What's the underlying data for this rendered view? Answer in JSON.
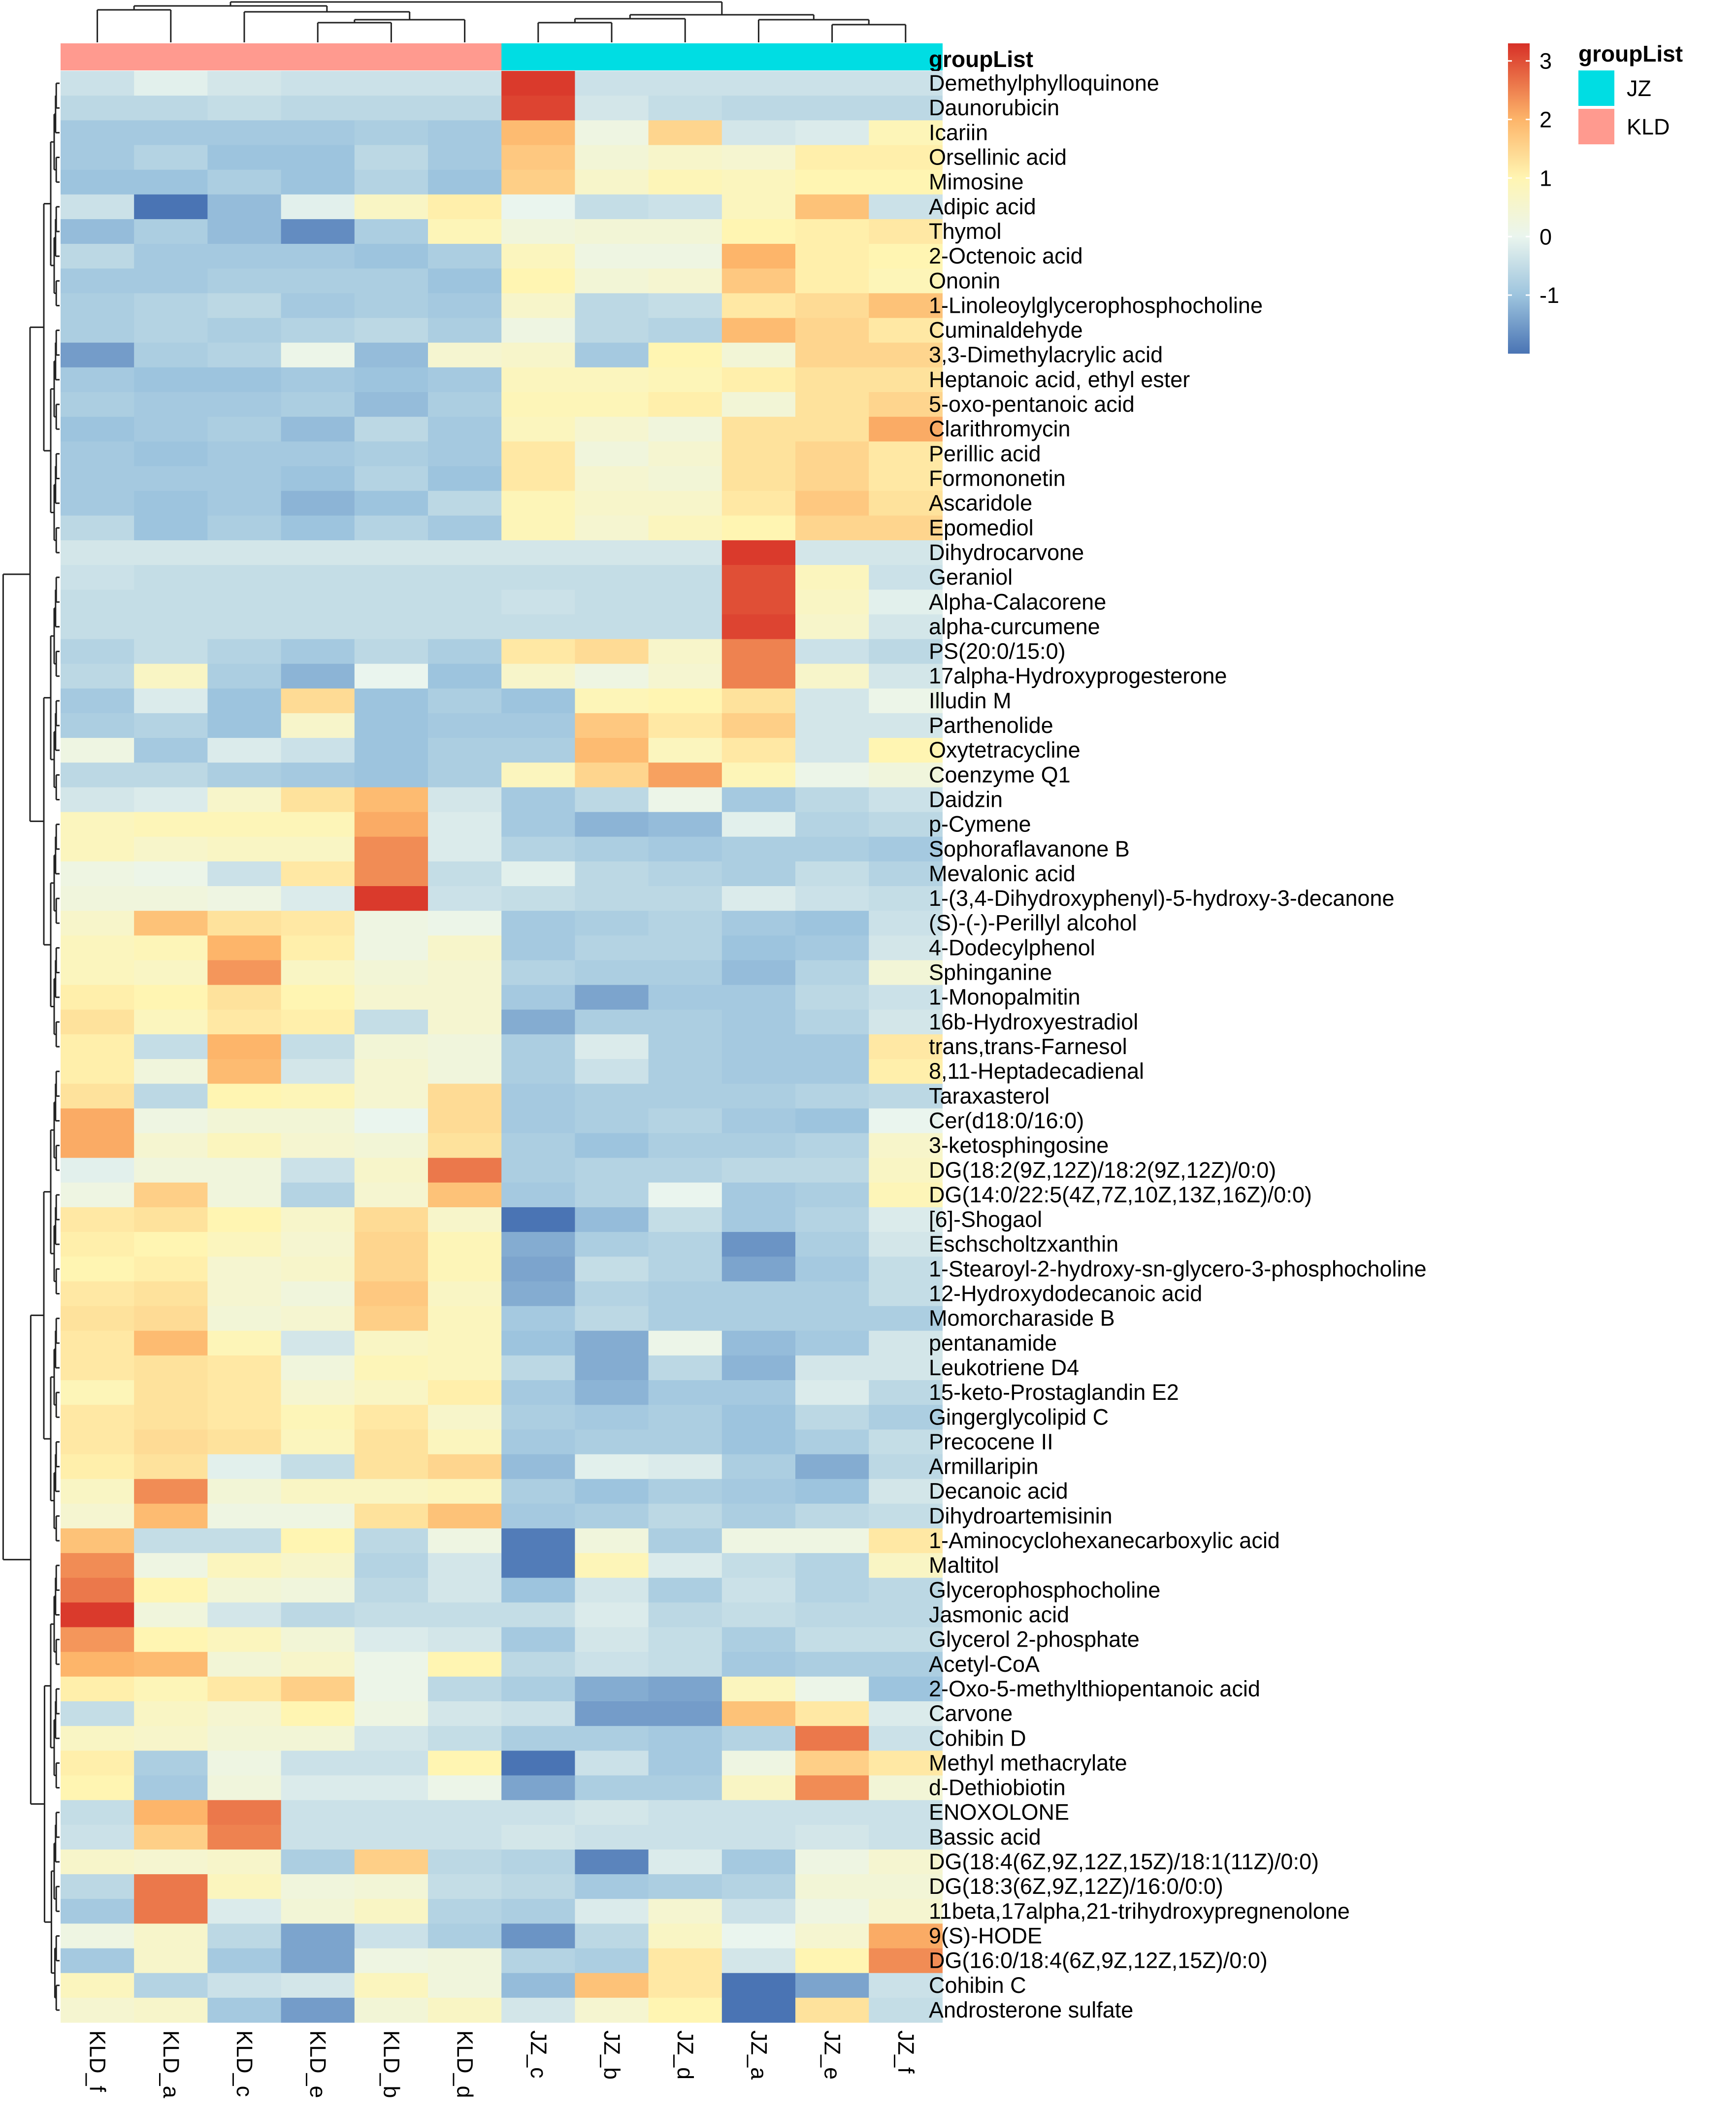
{
  "chart_data": {
    "type": "heatmap",
    "title": "",
    "columns": [
      "KLD_f",
      "KLD_a",
      "KLD_c",
      "KLD_e",
      "KLD_b",
      "KLD_d",
      "JZ_c",
      "JZ_b",
      "JZ_d",
      "JZ_a",
      "JZ_e",
      "JZ_f"
    ],
    "column_groups": [
      "KLD",
      "KLD",
      "KLD",
      "KLD",
      "KLD",
      "KLD",
      "JZ",
      "JZ",
      "JZ",
      "JZ",
      "JZ",
      "JZ"
    ],
    "annotation_label": "groupList",
    "legend_title": "groupList",
    "groups": [
      {
        "name": "JZ",
        "color": "#00DDE3"
      },
      {
        "name": "KLD",
        "color": "#FF9A8F"
      }
    ],
    "color_scale": {
      "min": -2,
      "max": 3.3,
      "ticks": [
        "3",
        "2",
        "1",
        "0",
        "-1"
      ],
      "tick_values": [
        3,
        2,
        1,
        0,
        -1
      ],
      "stops": [
        {
          "v": -2.0,
          "c": "#4A74B4"
        },
        {
          "v": -1.0,
          "c": "#9DC4DE"
        },
        {
          "v": 0.0,
          "c": "#EAF5EE"
        },
        {
          "v": 1.0,
          "c": "#FFF5B2"
        },
        {
          "v": 2.0,
          "c": "#FDB56A"
        },
        {
          "v": 3.3,
          "c": "#D73027"
        }
      ]
    },
    "rows": [
      "Demethylphylloquinone",
      "Daunorubicin",
      "Icariin",
      "Orsellinic acid",
      "Mimosine",
      "Adipic acid",
      "Thymol",
      "2-Octenoic acid",
      "Ononin",
      "1-Linoleoylglycerophosphocholine",
      "Cuminaldehyde",
      "3,3-Dimethylacrylic acid",
      "Heptanoic acid, ethyl ester",
      "5-oxo-pentanoic acid",
      "Clarithromycin",
      "Perillic acid",
      "Formononetin",
      "Ascaridole",
      "Epomediol",
      "Dihydrocarvone",
      "Geraniol",
      "Alpha-Calacorene",
      "alpha-curcumene",
      "PS(20:0/15:0)",
      "17alpha-Hydroxyprogesterone",
      "Illudin M",
      "Parthenolide",
      "Oxytetracycline",
      "Coenzyme Q1",
      "Daidzin",
      "p-Cymene",
      "Sophoraflavanone B",
      "Mevalonic acid",
      "1-(3,4-Dihydroxyphenyl)-5-hydroxy-3-decanone",
      "(S)-(-)-Perillyl alcohol",
      "4-Dodecylphenol",
      "Sphinganine",
      "1-Monopalmitin",
      "16b-Hydroxyestradiol",
      "trans,trans-Farnesol",
      "8,11-Heptadecadienal",
      "Taraxasterol",
      "Cer(d18:0/16:0)",
      "3-ketosphingosine",
      "DG(18:2(9Z,12Z)/18:2(9Z,12Z)/0:0)",
      "DG(14:0/22:5(4Z,7Z,10Z,13Z,16Z)/0:0)",
      "[6]-Shogaol",
      "Eschscholtzxanthin",
      "1-Stearoyl-2-hydroxy-sn-glycero-3-phosphocholine",
      "12-Hydroxydodecanoic acid",
      "Momorcharaside B",
      "pentanamide",
      "Leukotriene D4",
      "15-keto-Prostaglandin E2",
      "Gingerglycolipid C",
      "Precocene II",
      "Armillaripin",
      "Decanoic acid",
      "Dihydroartemisinin",
      "1-Aminocyclohexanecarboxylic acid",
      "Maltitol",
      "Glycerophosphocholine",
      "Jasmonic acid",
      "Glycerol 2-phosphate",
      "Acetyl-CoA",
      "2-Oxo-5-methylthiopentanoic acid",
      "Carvone",
      "Cohibin D",
      "Methyl methacrylate",
      "d-Dethiobiotin",
      "ENOXOLONE",
      "Bassic acid",
      "DG(18:4(6Z,9Z,12Z,15Z)/18:1(11Z)/0:0)",
      "DG(18:3(6Z,9Z,12Z)/16:0/0:0)",
      "11beta,17alpha,21-trihydroxypregnenolone",
      "9(S)-HODE",
      "DG(16:0/18:4(6Z,9Z,12Z,15Z)/0:0)",
      "Cohibin C",
      "Androsterone sulfate"
    ],
    "values": [
      [
        -0.4,
        -0.1,
        -0.3,
        -0.4,
        -0.4,
        -0.4,
        3.2,
        -0.4,
        -0.4,
        -0.4,
        -0.4,
        -0.4
      ],
      [
        -0.6,
        -0.6,
        -0.5,
        -0.6,
        -0.6,
        -0.6,
        3.1,
        -0.3,
        -0.5,
        -0.6,
        -0.6,
        -0.6
      ],
      [
        -0.9,
        -0.9,
        -0.9,
        -0.9,
        -0.8,
        -0.9,
        1.9,
        0.2,
        1.5,
        -0.3,
        -0.2,
        0.9
      ],
      [
        -0.9,
        -0.7,
        -1.0,
        -1.0,
        -0.6,
        -0.9,
        1.7,
        0.4,
        0.6,
        0.5,
        1.1,
        1.1
      ],
      [
        -1.0,
        -1.0,
        -0.8,
        -1.0,
        -0.7,
        -1.0,
        1.6,
        0.6,
        0.9,
        0.8,
        1.0,
        1.0
      ],
      [
        -0.4,
        -2.0,
        -1.1,
        -0.1,
        0.7,
        1.1,
        0.0,
        -0.5,
        -0.4,
        0.8,
        1.8,
        -0.4
      ],
      [
        -1.1,
        -0.8,
        -1.1,
        -1.7,
        -0.8,
        0.9,
        0.3,
        0.4,
        0.4,
        1.0,
        1.1,
        1.2
      ],
      [
        -0.6,
        -0.9,
        -0.9,
        -0.9,
        -1.0,
        -0.8,
        0.8,
        0.2,
        0.2,
        2.0,
        1.1,
        1.0
      ],
      [
        -0.9,
        -0.9,
        -0.8,
        -0.8,
        -0.8,
        -1.0,
        1.0,
        0.4,
        0.5,
        1.7,
        1.1,
        0.9
      ],
      [
        -0.8,
        -0.7,
        -0.6,
        -0.9,
        -0.8,
        -0.9,
        0.6,
        -0.6,
        -0.5,
        1.2,
        1.4,
        1.8
      ],
      [
        -0.8,
        -0.7,
        -0.8,
        -0.7,
        -0.6,
        -0.8,
        0.2,
        -0.6,
        -0.7,
        1.9,
        1.5,
        1.2
      ],
      [
        -1.5,
        -0.8,
        -0.7,
        0.1,
        -1.1,
        0.5,
        0.6,
        -0.9,
        1.0,
        0.4,
        1.5,
        1.5
      ],
      [
        -0.9,
        -1.0,
        -1.0,
        -0.9,
        -1.0,
        -0.9,
        0.8,
        0.8,
        0.9,
        1.1,
        1.3,
        1.3
      ],
      [
        -0.8,
        -0.9,
        -0.9,
        -0.8,
        -1.1,
        -0.8,
        0.9,
        0.9,
        1.1,
        0.4,
        1.3,
        1.5
      ],
      [
        -1.0,
        -0.9,
        -0.8,
        -1.1,
        -0.6,
        -0.9,
        0.8,
        0.5,
        0.3,
        1.3,
        1.3,
        2.1
      ],
      [
        -0.9,
        -1.0,
        -0.9,
        -0.9,
        -0.8,
        -0.9,
        1.2,
        0.3,
        0.5,
        1.3,
        1.5,
        1.2
      ],
      [
        -0.9,
        -0.9,
        -0.9,
        -1.0,
        -0.7,
        -1.0,
        1.2,
        0.5,
        0.4,
        1.3,
        1.5,
        1.2
      ],
      [
        -0.9,
        -1.0,
        -0.9,
        -1.2,
        -1.0,
        -0.6,
        0.9,
        0.6,
        0.6,
        1.2,
        1.7,
        1.3
      ],
      [
        -0.6,
        -1.0,
        -0.8,
        -1.0,
        -0.7,
        -0.9,
        0.9,
        0.5,
        0.8,
        1.0,
        1.5,
        1.5
      ],
      [
        -0.3,
        -0.3,
        -0.3,
        -0.3,
        -0.3,
        -0.3,
        -0.3,
        -0.3,
        -0.3,
        3.2,
        -0.3,
        -0.3
      ],
      [
        -0.4,
        -0.5,
        -0.5,
        -0.5,
        -0.5,
        -0.5,
        -0.5,
        -0.5,
        -0.5,
        3.0,
        0.8,
        -0.4
      ],
      [
        -0.5,
        -0.5,
        -0.5,
        -0.5,
        -0.5,
        -0.5,
        -0.4,
        -0.5,
        -0.5,
        3.0,
        0.7,
        -0.1
      ],
      [
        -0.5,
        -0.5,
        -0.5,
        -0.5,
        -0.5,
        -0.5,
        -0.5,
        -0.5,
        -0.5,
        3.1,
        0.6,
        -0.3
      ],
      [
        -0.7,
        -0.5,
        -0.7,
        -0.9,
        -0.6,
        -0.8,
        1.2,
        1.4,
        0.6,
        2.5,
        -0.4,
        -0.6
      ],
      [
        -0.6,
        0.7,
        -0.8,
        -1.2,
        0.0,
        -1.0,
        0.6,
        0.2,
        0.5,
        2.5,
        0.6,
        -0.3
      ],
      [
        -0.9,
        -0.2,
        -1.0,
        1.4,
        -1.0,
        -0.8,
        -1.0,
        0.9,
        1.0,
        1.3,
        -0.3,
        0.1
      ],
      [
        -0.8,
        -0.7,
        -1.0,
        0.6,
        -1.0,
        -0.9,
        -0.9,
        1.7,
        1.2,
        1.6,
        -0.3,
        -0.3
      ],
      [
        0.2,
        -0.9,
        -0.2,
        -0.4,
        -1.0,
        -0.8,
        -0.8,
        1.9,
        0.8,
        1.2,
        -0.3,
        1.0
      ],
      [
        -0.6,
        -0.6,
        -0.8,
        -0.9,
        -1.0,
        -0.8,
        0.8,
        1.5,
        2.2,
        0.9,
        0.1,
        0.3
      ],
      [
        -0.3,
        -0.2,
        0.6,
        1.3,
        1.9,
        -0.3,
        -0.9,
        -0.6,
        0.1,
        -0.9,
        -0.6,
        -0.4
      ],
      [
        0.8,
        0.9,
        0.9,
        0.9,
        2.1,
        -0.2,
        -0.9,
        -1.2,
        -1.1,
        -0.1,
        -0.7,
        -0.6
      ],
      [
        0.8,
        0.6,
        0.7,
        0.7,
        2.4,
        -0.2,
        -0.7,
        -0.8,
        -0.9,
        -0.8,
        -0.8,
        -0.9
      ],
      [
        0.2,
        0.1,
        -0.4,
        1.2,
        2.4,
        -0.5,
        -0.1,
        -0.6,
        -0.7,
        -0.8,
        -0.5,
        -0.7
      ],
      [
        0.3,
        0.3,
        0.2,
        -0.2,
        3.2,
        -0.4,
        -0.5,
        -0.6,
        -0.6,
        -0.2,
        -0.4,
        -0.5
      ],
      [
        0.6,
        1.8,
        1.3,
        1.2,
        0.2,
        0.1,
        -0.9,
        -0.8,
        -0.7,
        -0.9,
        -1.0,
        -0.4
      ],
      [
        0.8,
        0.9,
        2.0,
        1.1,
        0.2,
        0.6,
        -0.9,
        -0.7,
        -0.7,
        -1.0,
        -0.9,
        -0.3
      ],
      [
        0.8,
        0.7,
        2.3,
        0.7,
        0.4,
        0.5,
        -0.7,
        -0.8,
        -0.8,
        -1.1,
        -0.7,
        0.4
      ],
      [
        1.1,
        1.0,
        1.3,
        1.0,
        0.5,
        0.5,
        -0.9,
        -1.4,
        -0.9,
        -0.9,
        -0.6,
        -0.4
      ],
      [
        1.3,
        0.8,
        1.2,
        1.1,
        -0.5,
        0.5,
        -1.3,
        -0.8,
        -0.8,
        -0.9,
        -0.7,
        -0.3
      ],
      [
        1.1,
        -0.5,
        2.0,
        -0.5,
        0.4,
        0.3,
        -0.8,
        -0.2,
        -0.8,
        -0.9,
        -0.9,
        1.2
      ],
      [
        1.1,
        0.3,
        1.9,
        -0.3,
        0.5,
        0.3,
        -0.8,
        -0.4,
        -0.8,
        -0.9,
        -0.9,
        1.1
      ],
      [
        1.3,
        -0.6,
        1.0,
        0.9,
        0.5,
        1.4,
        -0.9,
        -0.8,
        -0.8,
        -0.8,
        -0.7,
        -0.6
      ],
      [
        2.1,
        0.2,
        0.4,
        0.4,
        0.0,
        1.4,
        -0.9,
        -0.8,
        -0.7,
        -0.9,
        -1.0,
        0.0
      ],
      [
        2.1,
        0.5,
        0.8,
        0.5,
        0.4,
        1.3,
        -0.8,
        -1.0,
        -0.8,
        -0.8,
        -0.7,
        0.6
      ],
      [
        -0.1,
        0.3,
        0.3,
        -0.4,
        0.6,
        2.6,
        -0.8,
        -0.7,
        -0.7,
        -0.6,
        -0.6,
        0.7
      ],
      [
        0.2,
        1.6,
        0.3,
        -0.7,
        0.5,
        1.8,
        -0.9,
        -0.7,
        0.0,
        -0.9,
        -0.8,
        0.9
      ],
      [
        1.2,
        1.3,
        1.0,
        0.6,
        1.4,
        0.6,
        -2.0,
        -1.1,
        -0.5,
        -0.9,
        -0.7,
        -0.2
      ],
      [
        1.1,
        1.0,
        0.8,
        0.5,
        1.5,
        0.9,
        -1.3,
        -0.8,
        -0.7,
        -1.6,
        -0.8,
        -0.3
      ],
      [
        1.0,
        1.1,
        0.5,
        0.6,
        1.5,
        0.9,
        -1.4,
        -0.5,
        -0.7,
        -1.4,
        -0.9,
        -0.5
      ],
      [
        1.2,
        1.3,
        0.5,
        0.3,
        1.7,
        0.7,
        -1.3,
        -0.7,
        -0.8,
        -0.8,
        -0.8,
        -0.5
      ],
      [
        1.3,
        1.4,
        0.4,
        0.5,
        1.6,
        0.8,
        -0.9,
        -0.6,
        -0.8,
        -0.8,
        -0.8,
        -0.8
      ],
      [
        1.2,
        1.9,
        0.9,
        -0.3,
        0.7,
        0.8,
        -1.0,
        -1.3,
        0.1,
        -1.1,
        -0.9,
        -0.3
      ],
      [
        1.2,
        1.3,
        1.2,
        0.3,
        0.9,
        0.8,
        -0.6,
        -1.3,
        -0.6,
        -1.2,
        -0.3,
        -0.3
      ],
      [
        0.9,
        1.3,
        1.2,
        0.5,
        0.7,
        1.1,
        -0.9,
        -1.2,
        -0.9,
        -0.9,
        -0.2,
        -0.6
      ],
      [
        1.2,
        1.3,
        1.2,
        0.9,
        1.2,
        0.6,
        -0.8,
        -0.9,
        -0.8,
        -1.0,
        -0.6,
        -0.8
      ],
      [
        1.2,
        1.4,
        1.3,
        0.8,
        1.3,
        0.8,
        -0.9,
        -0.8,
        -0.8,
        -1.0,
        -0.8,
        -0.5
      ],
      [
        1.1,
        1.3,
        -0.1,
        -0.5,
        1.3,
        1.5,
        -1.1,
        -0.1,
        -0.2,
        -0.8,
        -1.3,
        -0.6
      ],
      [
        0.7,
        2.4,
        0.4,
        0.7,
        0.7,
        0.8,
        -0.8,
        -1.0,
        -0.8,
        -0.9,
        -1.0,
        -0.3
      ],
      [
        0.5,
        1.9,
        0.2,
        0.2,
        1.3,
        1.8,
        -0.9,
        -0.8,
        -0.6,
        -0.8,
        -0.6,
        -0.5
      ],
      [
        1.8,
        -0.5,
        -0.5,
        1.0,
        -0.6,
        0.2,
        -1.9,
        0.3,
        -0.8,
        0.2,
        0.2,
        1.2
      ],
      [
        2.4,
        0.2,
        0.8,
        0.6,
        -0.7,
        -0.3,
        -1.9,
        0.9,
        -0.2,
        -0.5,
        -0.7,
        0.7
      ],
      [
        2.6,
        1.0,
        0.4,
        0.3,
        -0.6,
        -0.3,
        -1.0,
        -0.3,
        -0.8,
        -0.4,
        -0.7,
        -0.6
      ],
      [
        3.2,
        0.3,
        -0.3,
        -0.6,
        -0.5,
        -0.5,
        -0.5,
        -0.2,
        -0.6,
        -0.5,
        -0.6,
        -0.6
      ],
      [
        2.3,
        1.0,
        0.8,
        0.4,
        -0.2,
        -0.3,
        -0.9,
        -0.3,
        -0.5,
        -0.8,
        -0.5,
        -0.5
      ],
      [
        2.0,
        1.9,
        0.4,
        0.6,
        0.1,
        1.0,
        -0.6,
        -0.4,
        -0.5,
        -0.9,
        -0.8,
        -0.8
      ],
      [
        1.1,
        0.9,
        1.2,
        1.6,
        0.1,
        -0.6,
        -0.8,
        -1.3,
        -1.4,
        0.8,
        0.1,
        -1.0
      ],
      [
        -0.5,
        0.7,
        0.5,
        1.0,
        0.2,
        -0.3,
        -0.4,
        -1.5,
        -1.5,
        1.8,
        1.2,
        -0.2
      ],
      [
        0.7,
        0.6,
        0.4,
        0.4,
        -0.3,
        -0.5,
        -0.8,
        -0.8,
        -0.9,
        -0.7,
        2.6,
        -0.4
      ],
      [
        1.1,
        -0.8,
        0.2,
        -0.4,
        -0.4,
        1.0,
        -2.0,
        -0.4,
        -0.9,
        0.2,
        1.6,
        1.2
      ],
      [
        1.0,
        -0.9,
        0.3,
        -0.2,
        -0.2,
        0.1,
        -1.4,
        -0.8,
        -0.8,
        0.7,
        2.4,
        0.4
      ],
      [
        -0.5,
        2.0,
        2.6,
        -0.4,
        -0.4,
        -0.4,
        -0.4,
        -0.3,
        -0.4,
        -0.4,
        -0.4,
        -0.4
      ],
      [
        -0.4,
        1.6,
        2.5,
        -0.4,
        -0.4,
        -0.4,
        -0.3,
        -0.4,
        -0.4,
        -0.4,
        -0.3,
        -0.4
      ],
      [
        0.6,
        0.5,
        0.6,
        -0.8,
        1.6,
        -0.6,
        -0.7,
        -1.8,
        -0.2,
        -0.9,
        0.2,
        0.5
      ],
      [
        -0.6,
        2.6,
        0.8,
        0.3,
        0.4,
        -0.5,
        -0.6,
        -0.9,
        -0.8,
        -0.7,
        0.4,
        0.4
      ],
      [
        -0.9,
        2.6,
        -0.2,
        0.4,
        0.7,
        -0.7,
        -0.8,
        -0.2,
        0.5,
        -0.4,
        0.2,
        0.5
      ],
      [
        0.2,
        0.6,
        -0.6,
        -1.4,
        -0.4,
        -0.8,
        -1.6,
        -0.6,
        0.7,
        0.0,
        0.5,
        2.1
      ],
      [
        -0.9,
        0.6,
        -0.9,
        -1.4,
        0.2,
        0.3,
        -0.7,
        -0.8,
        1.2,
        -0.3,
        1.0,
        2.4
      ],
      [
        0.8,
        -0.7,
        -0.4,
        -0.3,
        0.8,
        0.3,
        -1.1,
        1.8,
        1.2,
        -2.0,
        -1.4,
        -0.4
      ],
      [
        0.5,
        0.6,
        -0.9,
        -1.5,
        0.4,
        0.7,
        -0.3,
        0.5,
        1.0,
        -2.0,
        1.3,
        -0.5
      ]
    ]
  }
}
